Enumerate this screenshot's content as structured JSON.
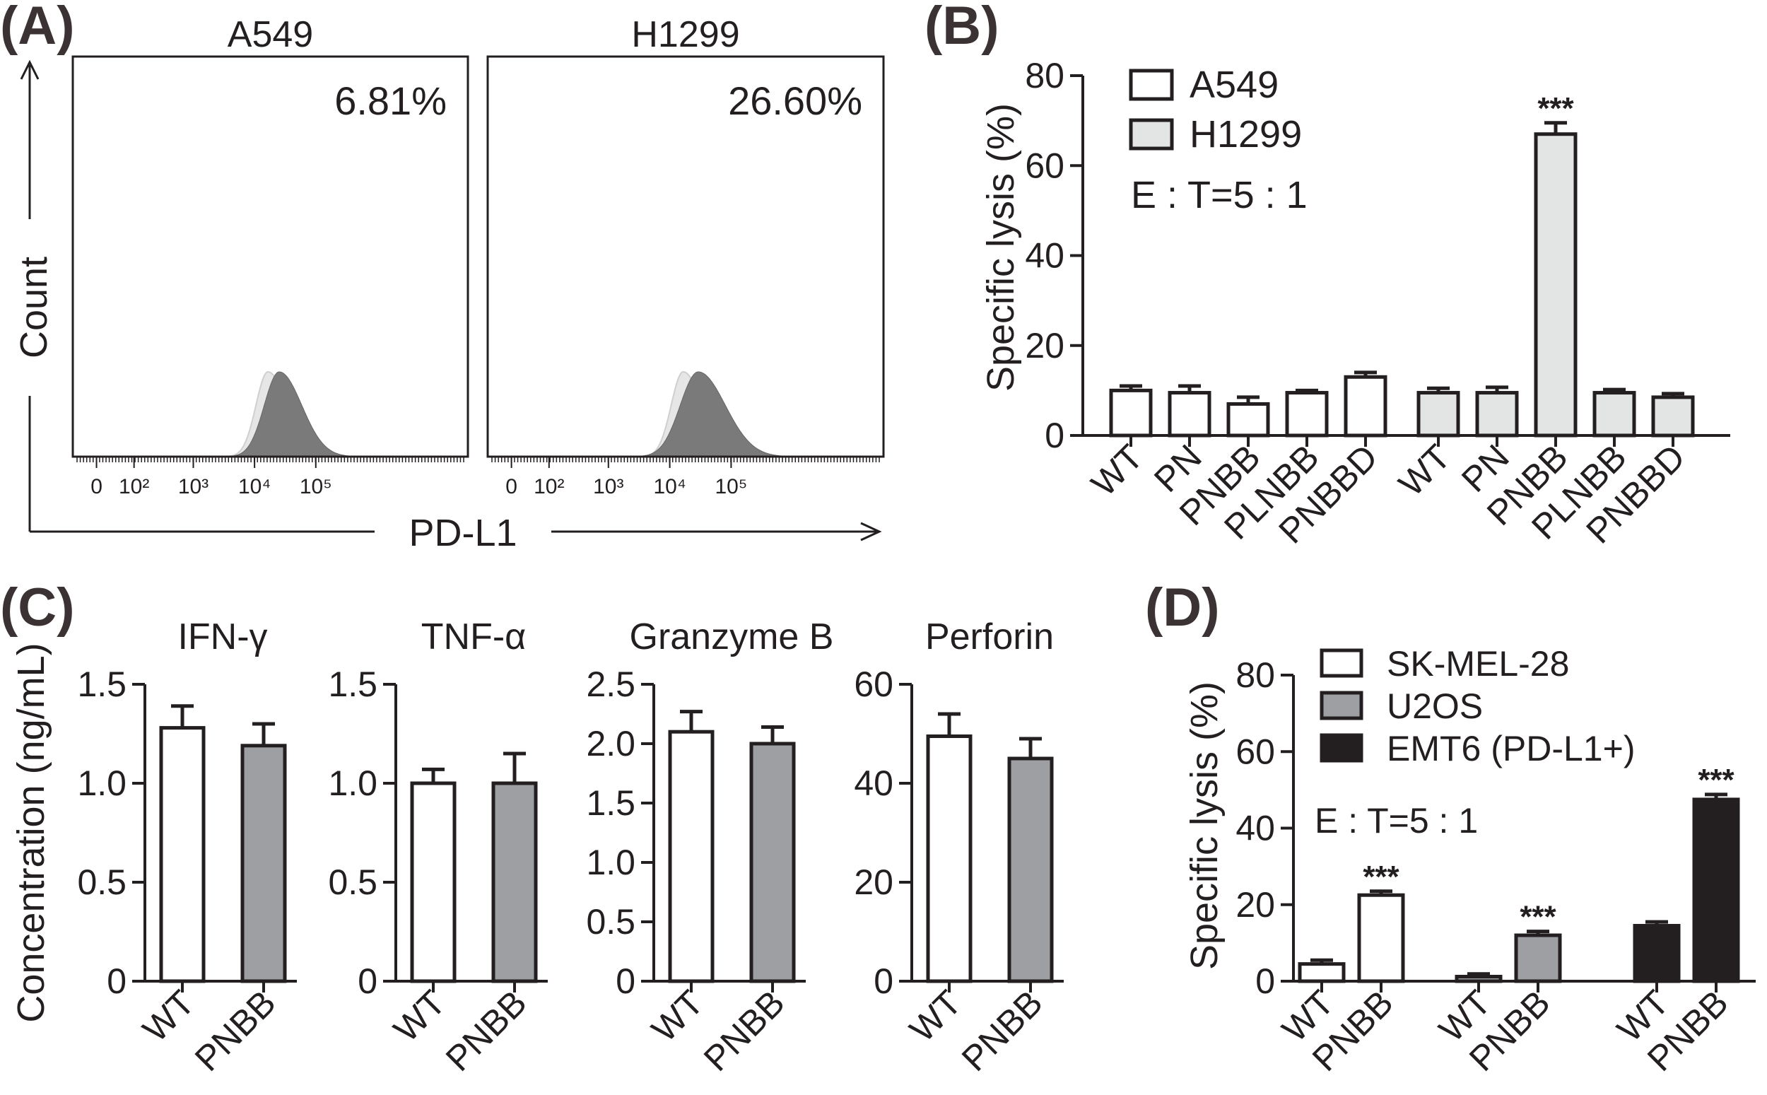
{
  "panel_labels": [
    "(A)",
    "(B)",
    "(C)",
    "(D)"
  ],
  "chart_data": [
    {
      "panel": "(A)",
      "type": "area",
      "subtype": "flow-cytometry-histogram",
      "ylabel": "Count",
      "xlabel": "PD-L1",
      "xscale": "biexponential",
      "xtick_labels": [
        "0",
        "10²",
        "10³",
        "10⁴",
        "10⁵"
      ],
      "colors": {
        "isotype": "#e6e6e6",
        "stained": "#7a7a7a"
      },
      "histograms": [
        {
          "title": "A549",
          "percent_label": "6.81%",
          "isotype_peak_decade": 2.1,
          "stained_peak_decade": 2.25,
          "stained_width": 0.2,
          "isotype_width": 0.16
        },
        {
          "title": "H1299",
          "percent_label": "26.60%",
          "isotype_peak_decade": 2.1,
          "stained_peak_decade": 2.3,
          "stained_width": 0.24,
          "isotype_width": 0.16
        }
      ]
    },
    {
      "panel": "(B)",
      "type": "bar",
      "ylabel": "Specific lysis (%)",
      "ylim": [
        0,
        80
      ],
      "yticks": [
        0,
        20,
        40,
        60,
        80
      ],
      "annotation": "E : T=5 : 1",
      "categories": [
        "WT",
        "PN",
        "PNBB",
        "PLNBB",
        "PNBBD"
      ],
      "series": [
        {
          "name": "A549",
          "color": "#ffffff",
          "values": [
            10,
            9.5,
            7,
            9.5,
            13
          ],
          "errors": [
            1,
            1.5,
            1.5,
            0.5,
            1
          ]
        },
        {
          "name": "H1299",
          "color": "#e3e5e5",
          "values": [
            9.5,
            9.5,
            67,
            9.5,
            8.5
          ],
          "errors": [
            1,
            1.2,
            2.5,
            0.7,
            0.8
          ]
        }
      ],
      "significance": [
        {
          "series": "H1299",
          "category": "PNBB",
          "label": "***"
        }
      ]
    },
    {
      "panel": "(C)",
      "type": "bar",
      "ylabel": "Concentration (ng/mL)",
      "categories": [
        "WT",
        "PNBB"
      ],
      "colors": [
        "#ffffff",
        "#9d9fa2"
      ],
      "subplots": [
        {
          "title": "IFN-γ",
          "ylim": [
            0,
            1.5
          ],
          "yticks": [
            "0",
            "0.5",
            "1.0",
            "1.5"
          ],
          "tick_values": [
            0,
            0.5,
            1.0,
            1.5
          ],
          "values": [
            1.28,
            1.19
          ],
          "errors": [
            0.11,
            0.11
          ]
        },
        {
          "title": "TNF-α",
          "ylim": [
            0,
            1.5
          ],
          "yticks": [
            "0",
            "0.5",
            "1.0",
            "1.5"
          ],
          "tick_values": [
            0,
            0.5,
            1.0,
            1.5
          ],
          "values": [
            1.0,
            1.0
          ],
          "errors": [
            0.07,
            0.15
          ]
        },
        {
          "title": "Granzyme B",
          "ylim": [
            0,
            2.5
          ],
          "yticks": [
            "0",
            "0.5",
            "1.0",
            "1.5",
            "2.0",
            "2.5"
          ],
          "tick_values": [
            0,
            0.5,
            1.0,
            1.5,
            2.0,
            2.5
          ],
          "values": [
            2.1,
            2.0
          ],
          "errors": [
            0.17,
            0.14
          ]
        },
        {
          "title": "Perforin",
          "ylim": [
            0,
            60
          ],
          "yticks": [
            "0",
            "20",
            "40",
            "60"
          ],
          "tick_values": [
            0,
            20,
            40,
            60
          ],
          "values": [
            49.5,
            45
          ],
          "errors": [
            4.5,
            4
          ]
        }
      ]
    },
    {
      "panel": "(D)",
      "type": "bar",
      "ylabel": "Specific lysis (%)",
      "ylim": [
        0,
        80
      ],
      "yticks": [
        0,
        20,
        40,
        60,
        80
      ],
      "annotation": "E : T=5 : 1",
      "categories": [
        "WT",
        "PNBB"
      ],
      "series": [
        {
          "name": "SK-MEL-28",
          "color": "#ffffff",
          "values": [
            4.5,
            22.5
          ],
          "errors": [
            1,
            1
          ]
        },
        {
          "name": "U2OS",
          "color": "#9d9fa2",
          "values": [
            1.2,
            12
          ],
          "errors": [
            0.7,
            1
          ]
        },
        {
          "name": "EMT6 (PD-L1+)",
          "color": "#231f20",
          "values": [
            14.5,
            47.5
          ],
          "errors": [
            1,
            1.3
          ]
        }
      ],
      "significance": [
        {
          "series": "SK-MEL-28",
          "category": "PNBB",
          "label": "***"
        },
        {
          "series": "U2OS",
          "category": "PNBB",
          "label": "***"
        },
        {
          "series": "EMT6 (PD-L1+)",
          "category": "PNBB",
          "label": "***"
        }
      ]
    }
  ]
}
